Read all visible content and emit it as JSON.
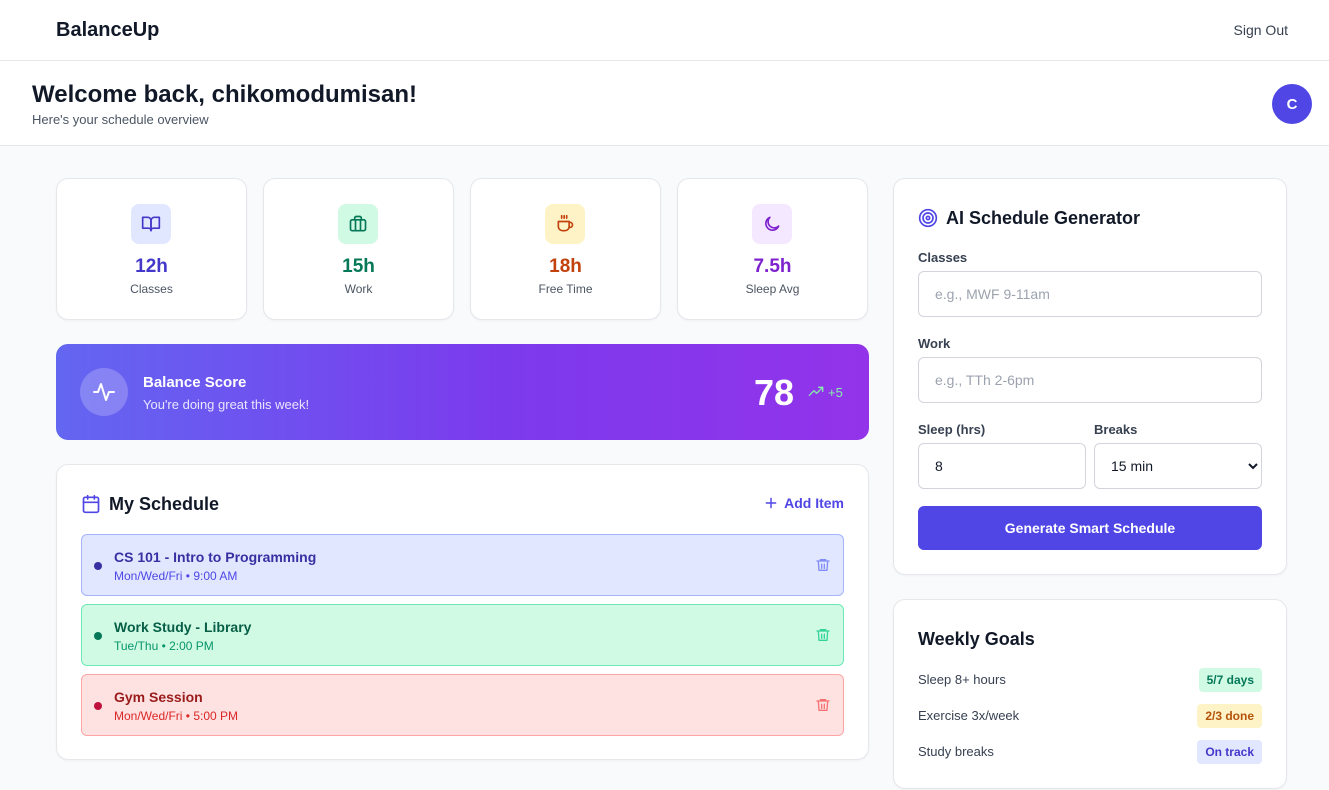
{
  "app": {
    "name": "BalanceUp",
    "sign_out": "Sign Out"
  },
  "welcome": {
    "title": "Welcome back, chikomodumisan!",
    "subtitle": "Here's your schedule overview",
    "avatar_initial": "C"
  },
  "stats": [
    {
      "value": "12h",
      "label": "Classes",
      "icon": "book-icon",
      "color": "#4338ca",
      "bg": "#e0e7ff"
    },
    {
      "value": "15h",
      "label": "Work",
      "icon": "briefcase-icon",
      "color": "#047857",
      "bg": "#d1fae5"
    },
    {
      "value": "18h",
      "label": "Free Time",
      "icon": "coffee-icon",
      "color": "#c2410c",
      "bg": "#fef3c7"
    },
    {
      "value": "7.5h",
      "label": "Sleep Avg",
      "icon": "moon-icon",
      "color": "#7e22ce",
      "bg": "#f3e8ff"
    }
  ],
  "balance": {
    "title": "Balance Score",
    "subtitle": "You're doing great this week!",
    "score": "78",
    "delta": "+5",
    "icon": "activity-icon"
  },
  "schedule": {
    "title": "My Schedule",
    "add_label": "Add Item",
    "items": [
      {
        "name": "CS 101 - Intro to Programming",
        "time": "Mon/Wed/Fri • 9:00 AM",
        "bg": "#e0e7ff",
        "border": "#a5b4fc",
        "text": "#3730a3",
        "sub": "#4f46e5",
        "dot": "#3730a3"
      },
      {
        "name": "Work Study - Library",
        "time": "Tue/Thu • 2:00 PM",
        "bg": "#d1fae5",
        "border": "#6ee7b7",
        "text": "#065f46",
        "sub": "#059669",
        "dot": "#047857"
      },
      {
        "name": "Gym Session",
        "time": "Mon/Wed/Fri • 5:00 PM",
        "bg": "#fee2e2",
        "border": "#fca5a5",
        "text": "#991b1b",
        "sub": "#dc2626",
        "dot": "#be123c"
      }
    ]
  },
  "ai": {
    "title": "AI Schedule Generator",
    "classes_label": "Classes",
    "classes_placeholder": "e.g., MWF 9-11am",
    "work_label": "Work",
    "work_placeholder": "e.g., TTh 2-6pm",
    "sleep_label": "Sleep (hrs)",
    "sleep_value": "8",
    "breaks_label": "Breaks",
    "breaks_value": "15 min",
    "button": "Generate Smart Schedule"
  },
  "goals": {
    "title": "Weekly Goals",
    "items": [
      {
        "label": "Sleep 8+ hours",
        "badge": "5/7 days",
        "bg": "#d1fae5",
        "color": "#047857"
      },
      {
        "label": "Exercise 3x/week",
        "badge": "2/3 done",
        "bg": "#fef3c7",
        "color": "#b45309"
      },
      {
        "label": "Study breaks",
        "badge": "On track",
        "bg": "#e0e7ff",
        "color": "#4338ca"
      }
    ]
  }
}
